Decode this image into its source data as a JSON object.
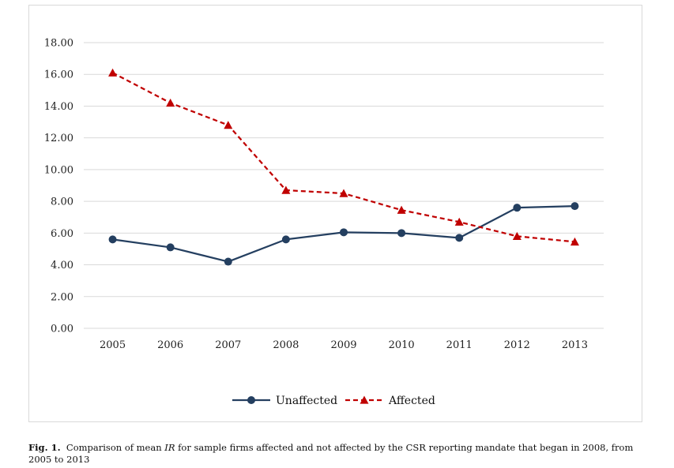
{
  "chart_data": {
    "type": "line",
    "categories": [
      "2005",
      "2006",
      "2007",
      "2008",
      "2009",
      "2010",
      "2011",
      "2012",
      "2013"
    ],
    "ylim": [
      0,
      18
    ],
    "yticks": [
      "0.00",
      "2.00",
      "4.00",
      "6.00",
      "8.00",
      "10.00",
      "12.00",
      "14.00",
      "16.00",
      "18.00"
    ],
    "grid": true,
    "legend_position": "bottom",
    "series": [
      {
        "name": "Unaffected",
        "color": "#243f60",
        "marker": "circle",
        "line_style": "solid",
        "values": [
          5.6,
          5.1,
          4.2,
          5.6,
          6.05,
          6.0,
          5.7,
          7.6,
          7.7
        ]
      },
      {
        "name": "Affected",
        "color": "#c00000",
        "marker": "triangle",
        "line_style": "dashed",
        "values": [
          16.1,
          14.2,
          12.8,
          8.7,
          8.5,
          7.45,
          6.7,
          5.8,
          5.45
        ]
      }
    ]
  },
  "caption": {
    "prefix": "Fig. 1.",
    "text_before": "Comparison of mean ",
    "italic": "IR",
    "text_after": " for sample firms affected and not affected by the CSR reporting mandate that began in 2008, from 2005 to 2013"
  }
}
